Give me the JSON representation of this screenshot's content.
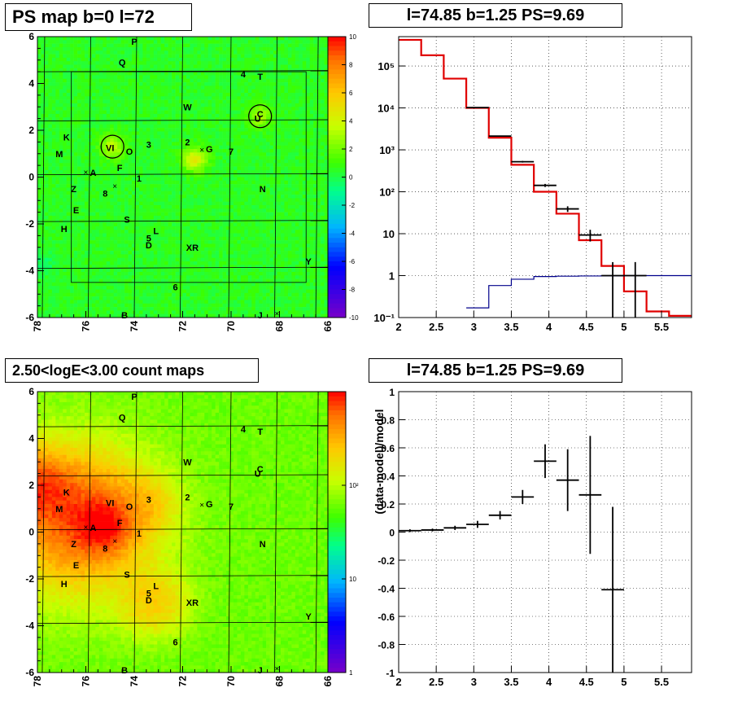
{
  "chart_data": [
    {
      "type": "heatmap",
      "title": "PS map b=0 l=72",
      "xlim": [
        78,
        66
      ],
      "ylim": [
        -6,
        6
      ],
      "x_ticks": [
        "78",
        "76",
        "74",
        "72",
        "70",
        "68",
        "66"
      ],
      "y_ticks": [
        "6",
        "4",
        "2",
        "0",
        "-2",
        "-4",
        "-6"
      ],
      "colorbar_ticks": [
        "10",
        "8",
        "6",
        "4",
        "2",
        "0",
        "-2",
        "-4",
        "-6",
        "-8",
        "-10"
      ],
      "colorbar_range": [
        -10,
        10
      ],
      "background_value": 0.5,
      "hotspots": [
        {
          "l": 71.5,
          "b": 0.75,
          "v": 4
        },
        {
          "l": 74.9,
          "b": 1.3,
          "v": 3
        },
        {
          "l": 68.8,
          "b": 2.6,
          "v": 2.5
        },
        {
          "l": 77.8,
          "b": -3.7,
          "v": -1
        }
      ],
      "source_labels": [
        {
          "t": "P",
          "l": 74.0,
          "b": 5.8
        },
        {
          "t": "Q",
          "l": 74.5,
          "b": 4.9
        },
        {
          "t": "4",
          "l": 69.5,
          "b": 4.4
        },
        {
          "t": "T",
          "l": 68.8,
          "b": 4.3
        },
        {
          "t": "W",
          "l": 71.8,
          "b": 3.0
        },
        {
          "t": "U",
          "l": 68.9,
          "b": 2.5
        },
        {
          "t": "C",
          "l": 68.8,
          "b": 2.7
        },
        {
          "t": "K",
          "l": 76.8,
          "b": 1.7
        },
        {
          "t": "M",
          "l": 77.1,
          "b": 1.0
        },
        {
          "t": "VI",
          "l": 75.0,
          "b": 1.25
        },
        {
          "t": "O",
          "l": 74.2,
          "b": 1.1
        },
        {
          "t": "3",
          "l": 73.4,
          "b": 1.4
        },
        {
          "t": "2",
          "l": 71.8,
          "b": 1.5
        },
        {
          "t": "G",
          "l": 70.9,
          "b": 1.2
        },
        {
          "t": "7",
          "l": 70.0,
          "b": 1.1
        },
        {
          "t": "F",
          "l": 74.6,
          "b": 0.4
        },
        {
          "t": "A",
          "l": 75.7,
          "b": 0.2
        },
        {
          "t": "1",
          "l": 73.8,
          "b": -0.05
        },
        {
          "t": "Z",
          "l": 76.5,
          "b": -0.5
        },
        {
          "t": "8",
          "l": 75.2,
          "b": -0.7
        },
        {
          "t": "N",
          "l": 68.7,
          "b": -0.5
        },
        {
          "t": "E",
          "l": 76.4,
          "b": -1.4
        },
        {
          "t": "S",
          "l": 74.3,
          "b": -1.8
        },
        {
          "t": "H",
          "l": 76.9,
          "b": -2.2
        },
        {
          "t": "L",
          "l": 73.1,
          "b": -2.3
        },
        {
          "t": "5",
          "l": 73.4,
          "b": -2.6
        },
        {
          "t": "D",
          "l": 73.4,
          "b": -2.9
        },
        {
          "t": "XR",
          "l": 71.6,
          "b": -3.0
        },
        {
          "t": "Y",
          "l": 66.8,
          "b": -3.6
        },
        {
          "t": "6",
          "l": 72.3,
          "b": -4.7
        },
        {
          "t": "B",
          "l": 74.4,
          "b": -5.9
        },
        {
          "t": "J",
          "l": 68.8,
          "b": -5.9
        }
      ],
      "circles": [
        {
          "l": 74.9,
          "b": 1.3
        },
        {
          "l": 68.8,
          "b": 2.6
        }
      ],
      "crosses": [
        {
          "l": 76.0,
          "b": 0.2
        },
        {
          "l": 71.2,
          "b": 1.15
        },
        {
          "l": 74.8,
          "b": -0.4
        },
        {
          "l": 68.1,
          "b": -5.85
        }
      ]
    },
    {
      "type": "line",
      "title": "l=74.85 b=1.25 PS=9.69",
      "xlim": [
        2,
        5.9
      ],
      "ylog": true,
      "x_ticks": [
        "2",
        "2.5",
        "3",
        "3.5",
        "4",
        "4.5",
        "5",
        "5.5"
      ],
      "y_ticks": [
        "10⁵",
        "10⁴",
        "10³",
        "10²",
        "10",
        "1",
        "10⁻¹"
      ],
      "series": [
        {
          "color": "#e00000",
          "edges": [
            2,
            2.3,
            2.6,
            2.9,
            3.2,
            3.5,
            3.8,
            4.1,
            4.4,
            4.7,
            5.0,
            5.3,
            5.6,
            5.9
          ],
          "values": [
            420000,
            180000,
            50000,
            10000,
            1950,
            440,
            100,
            30,
            7,
            1.7,
            0.42,
            0.14,
            0.11
          ]
        },
        {
          "color": "#00008b",
          "edges": [
            2.9,
            3.2,
            3.5,
            3.8,
            4.1,
            4.4,
            4.7,
            5.0,
            5.3,
            5.6,
            5.9
          ],
          "values": [
            0.17,
            0.58,
            0.82,
            0.95,
            0.97,
            0.98,
            0.99,
            1.0,
            1.0,
            1.0
          ]
        }
      ],
      "points": [
        {
          "x": 3.05,
          "y": 10200,
          "xl": 2.9,
          "xr": 3.2,
          "ylo": 10000,
          "yhi": 10400
        },
        {
          "x": 3.35,
          "y": 2130,
          "xl": 3.2,
          "xr": 3.5,
          "ylo": 2080,
          "yhi": 2180
        },
        {
          "x": 3.65,
          "y": 520,
          "xl": 3.5,
          "xr": 3.8,
          "ylo": 497,
          "yhi": 543
        },
        {
          "x": 3.95,
          "y": 142,
          "xl": 3.8,
          "xr": 4.1,
          "ylo": 130,
          "yhi": 154
        },
        {
          "x": 4.25,
          "y": 39,
          "xl": 4.1,
          "xr": 4.4,
          "ylo": 33,
          "yhi": 45
        },
        {
          "x": 4.55,
          "y": 9.3,
          "xl": 4.4,
          "xr": 4.7,
          "ylo": 6.5,
          "yhi": 12.4
        },
        {
          "x": 4.85,
          "y": 1.0,
          "xl": 4.7,
          "xr": 5.0,
          "ylo": 0.1,
          "yhi": 2.1
        },
        {
          "x": 5.15,
          "y": 1.0,
          "xl": 5.0,
          "xr": 5.3,
          "ylo": 0.1,
          "yhi": 2.1
        }
      ]
    },
    {
      "type": "heatmap",
      "title": "2.50<logE<3.00 count maps",
      "xlim": [
        78,
        66
      ],
      "ylim": [
        -6,
        6
      ],
      "x_ticks": [
        "78",
        "76",
        "74",
        "72",
        "70",
        "68",
        "66"
      ],
      "y_ticks": [
        "6",
        "4",
        "2",
        "0",
        "-2",
        "-4",
        "-6"
      ],
      "colorbar_ticks": [
        "10²",
        "10",
        "1"
      ],
      "zlog": true,
      "colorbar_range": [
        1,
        1000
      ],
      "background_value": 60,
      "hotspots": [
        {
          "l": 75.3,
          "b": 0.25,
          "v": 700,
          "s": 0.6
        },
        {
          "l": 76.0,
          "b": 0.5,
          "v": 450,
          "s": 1.3
        },
        {
          "l": 77.9,
          "b": 1.9,
          "v": 450,
          "s": 0.9
        },
        {
          "l": 76.5,
          "b": 0.5,
          "v": 200,
          "s": 2.2
        },
        {
          "l": 73.2,
          "b": -3.0,
          "v": 160,
          "s": 0.9
        },
        {
          "l": 73.5,
          "b": 1.2,
          "v": 120,
          "s": 0.8
        }
      ],
      "x_edge_boost": 150
    },
    {
      "type": "scatter",
      "title": "l=74.85 b=1.25 PS=9.69",
      "ylabel": "(data-model)/model",
      "xlim": [
        2,
        5.9
      ],
      "ylim": [
        -1,
        1
      ],
      "x_ticks": [
        "2",
        "2.5",
        "3",
        "3.5",
        "4",
        "4.5",
        "5",
        "5.5"
      ],
      "y_ticks": [
        "1",
        "0.8",
        "0.6",
        "0.4",
        "0.2",
        "0",
        "-0.2",
        "-0.4",
        "-0.6",
        "-0.8",
        "-1"
      ],
      "points": [
        {
          "x": 2.15,
          "y": 0.01,
          "xl": 2.0,
          "xr": 2.3,
          "err": 0.01
        },
        {
          "x": 2.45,
          "y": 0.015,
          "xl": 2.3,
          "xr": 2.6,
          "err": 0.01
        },
        {
          "x": 2.75,
          "y": 0.03,
          "xl": 2.6,
          "xr": 2.9,
          "err": 0.015
        },
        {
          "x": 3.05,
          "y": 0.055,
          "xl": 2.9,
          "xr": 3.2,
          "err": 0.025
        },
        {
          "x": 3.35,
          "y": 0.12,
          "xl": 3.2,
          "xr": 3.5,
          "err": 0.03
        },
        {
          "x": 3.65,
          "y": 0.25,
          "xl": 3.5,
          "xr": 3.8,
          "err": 0.05
        },
        {
          "x": 3.95,
          "y": 0.505,
          "xl": 3.8,
          "xr": 4.1,
          "err": 0.12
        },
        {
          "x": 4.25,
          "y": 0.37,
          "xl": 4.1,
          "xr": 4.4,
          "err": 0.22
        },
        {
          "x": 4.55,
          "y": 0.265,
          "xl": 4.4,
          "xr": 4.7,
          "err": 0.42
        },
        {
          "x": 4.85,
          "y": -0.41,
          "xl": 4.7,
          "xr": 5.0,
          "err": 0.59
        }
      ]
    }
  ]
}
